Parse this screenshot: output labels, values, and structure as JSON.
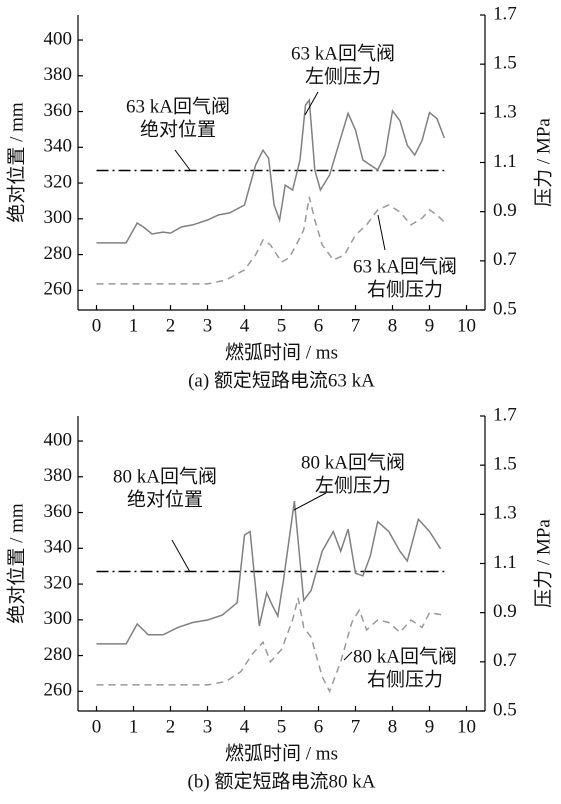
{
  "chart_data": [
    {
      "type": "line",
      "caption": "(a)  额定短路电流63 kA",
      "xlabel": "燃弧时间 / ms",
      "ylabel": "绝对位置 / mm",
      "y2label": "压力 / MPa",
      "xlim": [
        -0.5,
        10.5
      ],
      "xticks": [
        0,
        1,
        2,
        3,
        4,
        5,
        6,
        7,
        8,
        9,
        10
      ],
      "ylim": [
        249,
        414
      ],
      "yticks": [
        260,
        280,
        300,
        320,
        340,
        360,
        380,
        400
      ],
      "y2lim": [
        0.5,
        1.7
      ],
      "y2ticks": [
        0.5,
        0.7,
        0.9,
        1.1,
        1.3,
        1.5,
        1.7
      ],
      "series": [
        {
          "label": [
            "63 kA回气阀",
            "绝对位置"
          ],
          "color": "#000000",
          "style": "dashdot",
          "axis": "y",
          "x": [
            0,
            9.4
          ],
          "values": [
            327,
            327
          ]
        },
        {
          "label": [
            "63 kA回气阀",
            "左侧压力"
          ],
          "color": "#808080",
          "style": "solid",
          "axis": "y2",
          "x": [
            0,
            0.8,
            1.1,
            1.3,
            1.5,
            1.8,
            2.0,
            2.3,
            2.6,
            3.0,
            3.3,
            3.6,
            4.0,
            4.3,
            4.5,
            4.65,
            4.8,
            4.95,
            5.1,
            5.3,
            5.5,
            5.65,
            5.75,
            5.9,
            6.05,
            6.3,
            6.5,
            6.8,
            7.0,
            7.2,
            7.4,
            7.6,
            7.8,
            8.0,
            8.2,
            8.4,
            8.6,
            8.8,
            9.0,
            9.2,
            9.4
          ],
          "values": [
            0.773,
            0.773,
            0.854,
            0.834,
            0.809,
            0.817,
            0.813,
            0.838,
            0.846,
            0.866,
            0.887,
            0.895,
            0.927,
            1.09,
            1.15,
            1.118,
            0.927,
            0.866,
            1.008,
            0.988,
            1.11,
            1.334,
            1.354,
            1.07,
            0.988,
            1.049,
            1.15,
            1.3,
            1.232,
            1.11,
            1.09,
            1.07,
            1.13,
            1.31,
            1.27,
            1.17,
            1.13,
            1.19,
            1.303,
            1.279,
            1.2
          ]
        },
        {
          "label": [
            "63 kA回气阀",
            "右侧压力"
          ],
          "color": "#999999",
          "style": "dashed",
          "axis": "y2",
          "x": [
            0,
            3.0,
            3.5,
            4.0,
            4.3,
            4.5,
            4.7,
            5.0,
            5.2,
            5.4,
            5.6,
            5.75,
            5.9,
            6.1,
            6.4,
            6.7,
            7.0,
            7.3,
            7.6,
            7.9,
            8.2,
            8.5,
            8.8,
            9.0,
            9.2,
            9.4
          ],
          "values": [
            0.606,
            0.606,
            0.622,
            0.663,
            0.724,
            0.785,
            0.765,
            0.695,
            0.712,
            0.765,
            0.826,
            0.96,
            0.866,
            0.765,
            0.704,
            0.724,
            0.805,
            0.846,
            0.907,
            0.927,
            0.899,
            0.846,
            0.874,
            0.907,
            0.887,
            0.858
          ]
        }
      ]
    },
    {
      "type": "line",
      "caption": "(b)  额定短路电流80 kA",
      "xlabel": "燃弧时间 / ms",
      "ylabel": "绝对位置 / mm",
      "y2label": "压力 / MPa",
      "xlim": [
        -0.5,
        10.5
      ],
      "xticks": [
        0,
        1,
        2,
        3,
        4,
        5,
        6,
        7,
        8,
        9,
        10
      ],
      "ylim": [
        249,
        414
      ],
      "yticks": [
        260,
        280,
        300,
        320,
        340,
        360,
        380,
        400
      ],
      "y2lim": [
        0.5,
        1.7
      ],
      "y2ticks": [
        0.5,
        0.7,
        0.9,
        1.1,
        1.3,
        1.5,
        1.7
      ],
      "series": [
        {
          "label": [
            "80 kA回气阀",
            "绝对位置"
          ],
          "color": "#000000",
          "style": "dashdot",
          "axis": "y",
          "x": [
            0,
            9.4
          ],
          "values": [
            327,
            327
          ]
        },
        {
          "label": [
            "80 kA回气阀",
            "左侧压力"
          ],
          "color": "#808080",
          "style": "solid",
          "axis": "y2",
          "x": [
            0,
            0.8,
            1.1,
            1.4,
            1.8,
            2.2,
            2.6,
            3.0,
            3.4,
            3.8,
            4.0,
            4.15,
            4.4,
            4.6,
            4.75,
            4.9,
            5.05,
            5.35,
            5.6,
            5.8,
            6.1,
            6.4,
            6.6,
            6.8,
            7.0,
            7.2,
            7.4,
            7.6,
            7.9,
            8.2,
            8.4,
            8.7,
            9.0,
            9.3
          ],
          "values": [
            0.773,
            0.773,
            0.854,
            0.81,
            0.81,
            0.84,
            0.86,
            0.87,
            0.89,
            0.94,
            1.216,
            1.23,
            0.846,
            0.98,
            0.93,
            0.886,
            1.03,
            1.354,
            0.95,
            0.99,
            1.15,
            1.23,
            1.15,
            1.24,
            1.06,
            1.05,
            1.13,
            1.27,
            1.23,
            1.15,
            1.11,
            1.28,
            1.23,
            1.16
          ]
        },
        {
          "label": [
            "80 kA回气阀",
            "右侧压力"
          ],
          "color": "#999999",
          "style": "dashed",
          "axis": "y2",
          "x": [
            0,
            3.0,
            3.5,
            3.9,
            4.2,
            4.5,
            4.7,
            5.0,
            5.3,
            5.45,
            5.6,
            5.8,
            6.1,
            6.3,
            6.6,
            6.9,
            7.1,
            7.3,
            7.6,
            7.9,
            8.2,
            8.5,
            8.8,
            9.0,
            9.4
          ],
          "values": [
            0.606,
            0.606,
            0.62,
            0.66,
            0.73,
            0.78,
            0.7,
            0.75,
            0.87,
            0.96,
            0.84,
            0.8,
            0.64,
            0.58,
            0.7,
            0.86,
            0.91,
            0.83,
            0.87,
            0.86,
            0.82,
            0.87,
            0.84,
            0.9,
            0.89
          ]
        }
      ]
    }
  ]
}
